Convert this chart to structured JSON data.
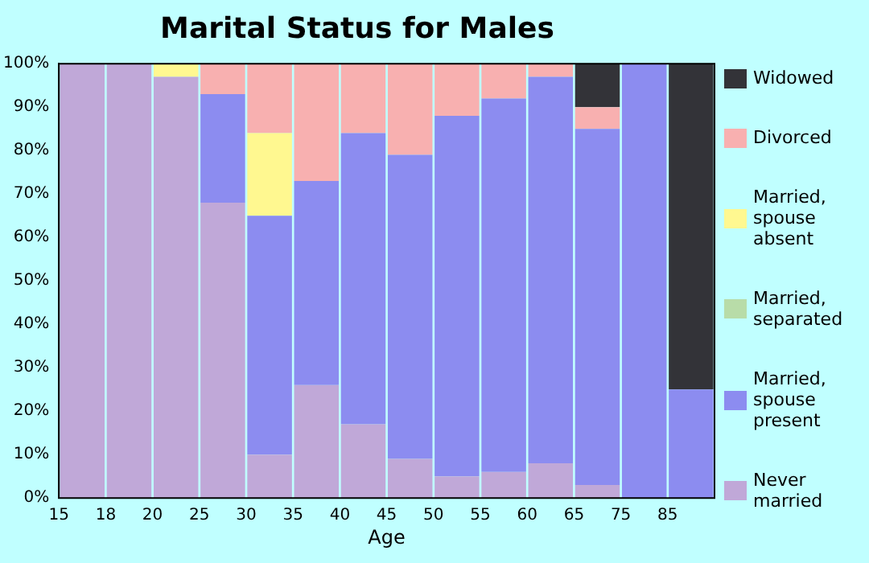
{
  "chart_data": {
    "type": "bar",
    "title": "Marital Status for Males",
    "xlabel": "Age",
    "stacked": true,
    "legend": "right",
    "grid": false,
    "categories": [
      "15",
      "18",
      "20",
      "25",
      "30",
      "35",
      "40",
      "45",
      "50",
      "55",
      "60",
      "65",
      "75",
      "85"
    ],
    "ylim": [
      0,
      100
    ],
    "yticks": [
      {
        "value": 0,
        "label": "0%"
      },
      {
        "value": 10,
        "label": "10%"
      },
      {
        "value": 20,
        "label": "20%"
      },
      {
        "value": 30,
        "label": "30%"
      },
      {
        "value": 40,
        "label": "40%"
      },
      {
        "value": 50,
        "label": "50%"
      },
      {
        "value": 60,
        "label": "60%"
      },
      {
        "value": 70,
        "label": "70%"
      },
      {
        "value": 80,
        "label": "80%"
      },
      {
        "value": 90,
        "label": "90%"
      },
      {
        "value": 100,
        "label": "100%"
      }
    ],
    "series": [
      {
        "name": "Never married",
        "color": "#c0a8d8",
        "values": [
          100,
          100,
          97,
          68,
          10,
          26,
          17,
          9,
          5,
          6,
          8,
          3,
          0,
          0
        ]
      },
      {
        "name": "Married, spouse present",
        "color": "#8c8cf0",
        "values": [
          0,
          0,
          0,
          25,
          55,
          47,
          67,
          70,
          83,
          86,
          89,
          82,
          100,
          25
        ]
      },
      {
        "name": "Married, separated",
        "color": "#b8dca8",
        "values": [
          0,
          0,
          0,
          0,
          0,
          0,
          0,
          0,
          0,
          0,
          0,
          0,
          0,
          0
        ]
      },
      {
        "name": "Married, spouse absent",
        "color": "#fff890",
        "values": [
          0,
          0,
          3,
          0,
          19,
          0,
          0,
          0,
          0,
          0,
          0,
          0,
          0,
          0
        ]
      },
      {
        "name": "Divorced",
        "color": "#f8b0b0",
        "values": [
          0,
          0,
          0,
          7,
          16,
          27,
          16,
          21,
          12,
          8,
          3,
          5,
          0,
          0
        ]
      },
      {
        "name": "Widowed",
        "color": "#333338",
        "values": [
          0,
          0,
          0,
          0,
          0,
          0,
          0,
          0,
          0,
          0,
          0,
          10,
          0,
          75
        ]
      }
    ]
  }
}
